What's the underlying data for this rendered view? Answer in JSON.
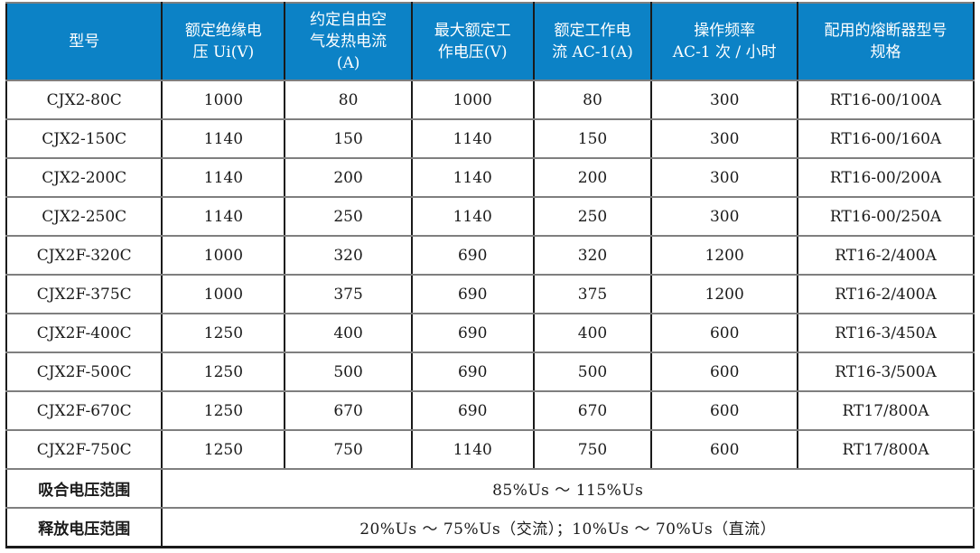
{
  "table": {
    "columns": [
      {
        "label": "型号"
      },
      {
        "label": "额定绝缘电\n压 Ui(V)"
      },
      {
        "label": "约定自由空\n气发热电流\n(A)"
      },
      {
        "label": "最大额定工\n作电压(V)"
      },
      {
        "label": "额定工作电\n流 AC-1(A)"
      },
      {
        "label": "操作频率\nAC-1 次 / 小时"
      },
      {
        "label": "配用的熔断器型号\n规格"
      }
    ],
    "column_keys": [
      "model",
      "rated-insulation-voltage",
      "free-air-thermal-current",
      "max-rated-operational-voltage",
      "rated-operational-current-ac1",
      "operating-frequency-ac1",
      "matching-fuse-spec"
    ],
    "rows": [
      [
        "CJX2-80C",
        "1000",
        "80",
        "1000",
        "80",
        "300",
        "RT16-00/100A"
      ],
      [
        "CJX2-150C",
        "1140",
        "150",
        "1140",
        "150",
        "300",
        "RT16-00/160A"
      ],
      [
        "CJX2-200C",
        "1140",
        "200",
        "1140",
        "200",
        "300",
        "RT16-00/200A"
      ],
      [
        "CJX2-250C",
        "1140",
        "250",
        "1140",
        "250",
        "300",
        "RT16-00/250A"
      ],
      [
        "CJX2F-320C",
        "1000",
        "320",
        "690",
        "320",
        "1200",
        "RT16-2/400A"
      ],
      [
        "CJX2F-375C",
        "1000",
        "375",
        "690",
        "375",
        "1200",
        "RT16-2/400A"
      ],
      [
        "CJX2F-400C",
        "1250",
        "400",
        "690",
        "400",
        "600",
        "RT16-3/450A"
      ],
      [
        "CJX2F-500C",
        "1250",
        "500",
        "690",
        "500",
        "600",
        "RT16-3/500A"
      ],
      [
        "CJX2F-670C",
        "1250",
        "670",
        "690",
        "670",
        "600",
        "RT17/800A"
      ],
      [
        "CJX2F-750C",
        "1250",
        "750",
        "1140",
        "750",
        "600",
        "RT17/800A"
      ]
    ],
    "footer_rows": [
      {
        "label": "吸合电压范围",
        "value": "85%Us ～ 115%Us"
      },
      {
        "label": "释放电压范围",
        "value": "20%Us ～ 75%Us（交流）；10%Us ～ 70%Us（直流）"
      }
    ]
  },
  "colors": {
    "header_bg": "#0c82c6",
    "header_text": "#ffffff",
    "border_vertical": "#1a1a1a",
    "border_horizontal": "#7f7f7f",
    "body_text": "#1a1a1a"
  }
}
